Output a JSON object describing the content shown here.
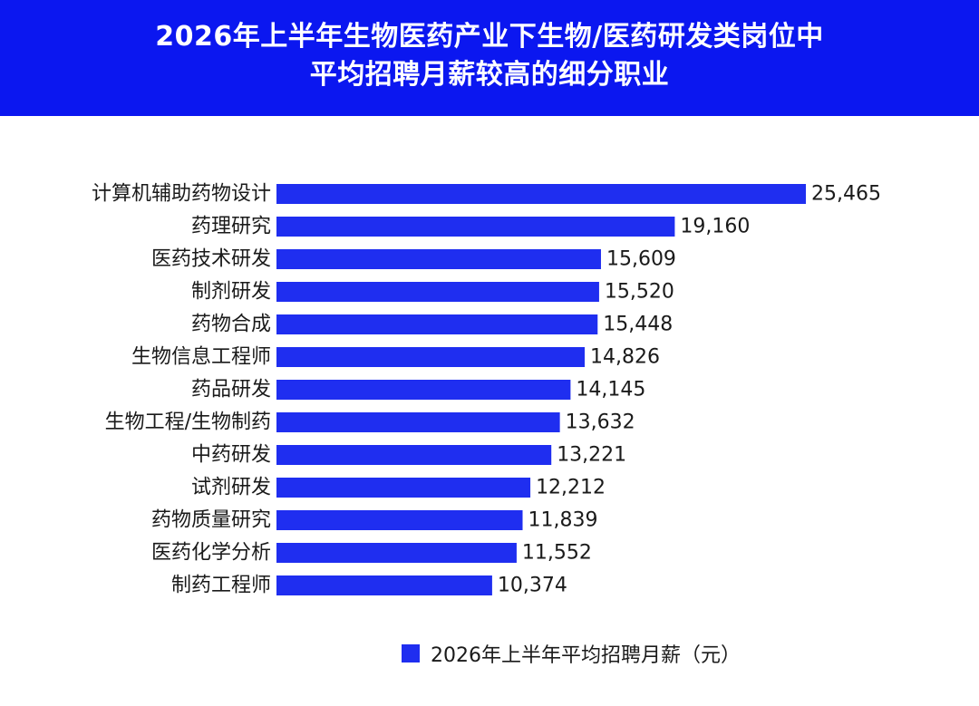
{
  "header": {
    "title_line1": "2026年上半年生物医药产业下生物/医药研发类岗位中",
    "title_line2": "平均招聘月薪较高的细分职业"
  },
  "colors": {
    "header_bg": "#0b17f0",
    "bar": "#1f2ef0"
  },
  "chart_data": {
    "type": "bar",
    "orientation": "horizontal",
    "categories": [
      "计算机辅助药物设计",
      "药理研究",
      "医药技术研发",
      "制剂研发",
      "药物合成",
      "生物信息工程师",
      "药品研发",
      "生物工程/生物制药",
      "中药研发",
      "试剂研发",
      "药物质量研究",
      "医药化学分析",
      "制药工程师"
    ],
    "series": [
      {
        "name": "2026年上半年平均招聘月薪（元）",
        "values": [
          25465,
          19160,
          15609,
          15520,
          15448,
          14826,
          14145,
          13632,
          13221,
          12212,
          11839,
          11552,
          10374
        ],
        "labels": [
          "25,465",
          "19,160",
          "15,609",
          "15,520",
          "15,448",
          "14,826",
          "14,145",
          "13,632",
          "13,221",
          "12,212",
          "11,839",
          "11,552",
          "10,374"
        ]
      }
    ],
    "xlim": [
      0,
      25465
    ],
    "grid": false,
    "legend_position": "bottom"
  }
}
